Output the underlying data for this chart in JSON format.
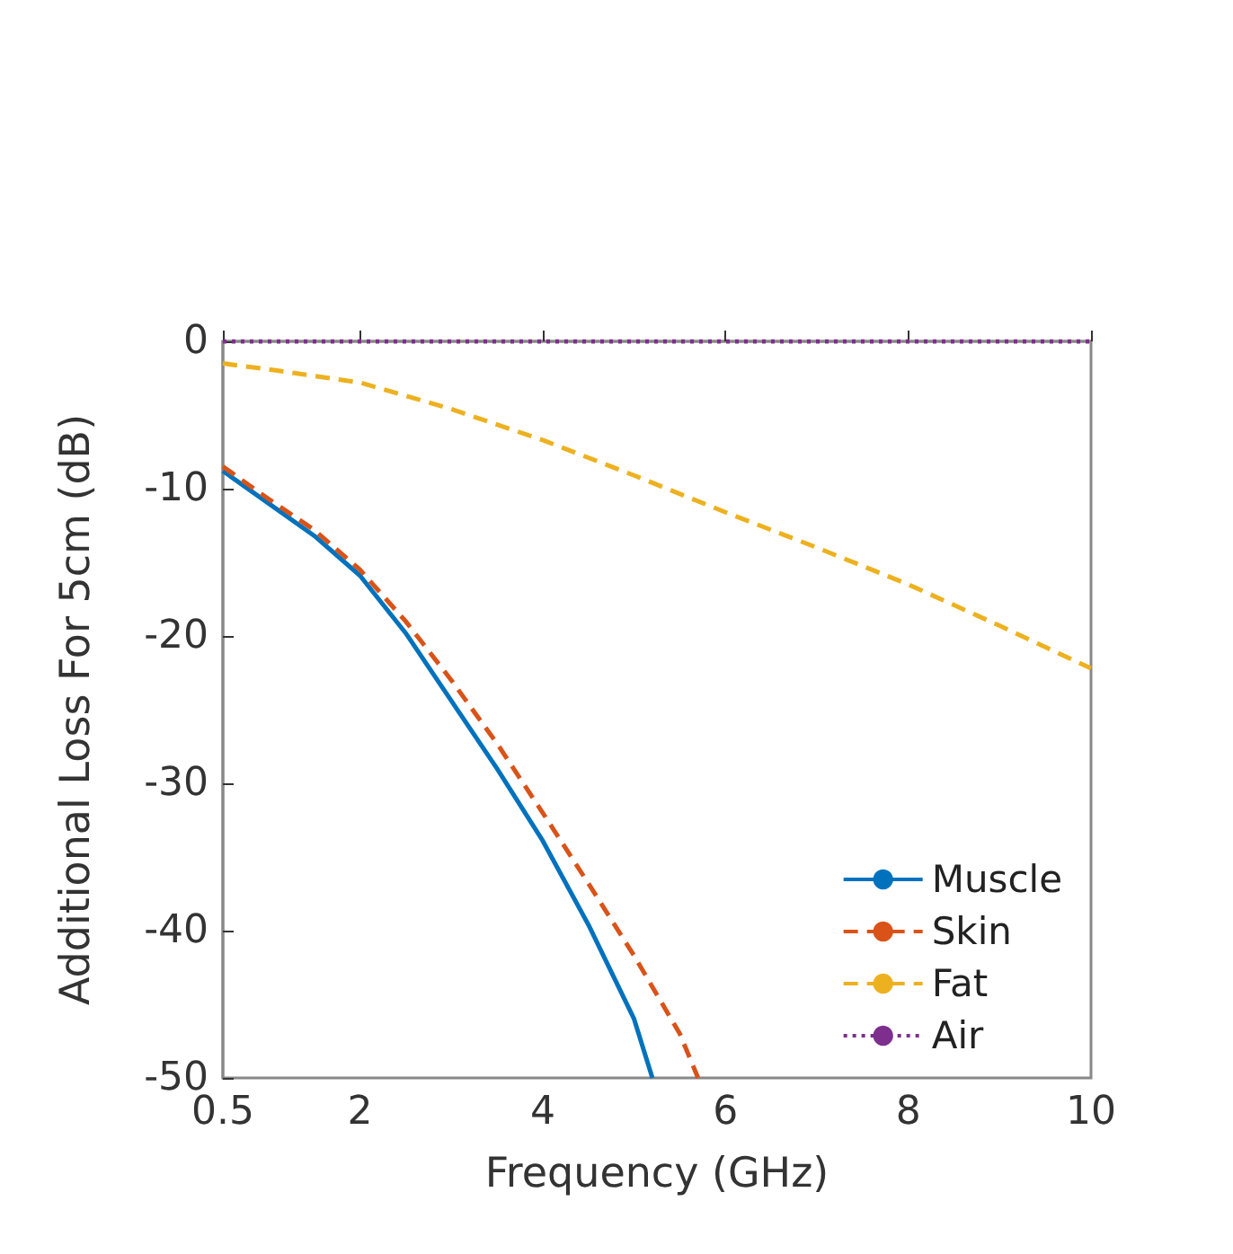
{
  "chart_data": {
    "type": "line",
    "xlabel": "Frequency (GHz)",
    "ylabel": "Additional Loss For 5cm (dB)",
    "xlim": [
      0.5,
      10
    ],
    "xticks": [
      0.5,
      2,
      4,
      6,
      8,
      10
    ],
    "ylim": [
      -50,
      0
    ],
    "yticks": [
      -50,
      -40,
      -30,
      -20,
      -10,
      0
    ],
    "grid": false,
    "legend": "bottom right",
    "marker": "none",
    "series": [
      {
        "name": "Muscle",
        "color": "#0072bd",
        "line_style": "solid",
        "x": [
          0.5,
          1,
          1.5,
          2,
          2.5,
          3,
          3.5,
          4,
          4.5,
          5,
          5.2
        ],
        "values": [
          -8.8,
          -11,
          -13.2,
          -15.9,
          -19.8,
          -24.4,
          -29,
          -33.9,
          -39.6,
          -46,
          -50
        ]
      },
      {
        "name": "Skin",
        "color": "#d95319",
        "line_style": "dashed",
        "x": [
          0.5,
          1,
          1.5,
          2,
          2.5,
          3,
          3.5,
          4,
          4.5,
          5,
          5.5,
          5.7
        ],
        "values": [
          -8.5,
          -10.7,
          -12.8,
          -15.5,
          -19,
          -23,
          -27.3,
          -32,
          -36.8,
          -41.7,
          -47,
          -50
        ]
      },
      {
        "name": "Fat",
        "color": "#edb120",
        "line_style": "dashed",
        "x": [
          0.5,
          1,
          2,
          3,
          4,
          5,
          6,
          7,
          8,
          9,
          10
        ],
        "values": [
          -1.5,
          -1.9,
          -2.8,
          -4.6,
          -6.7,
          -9.1,
          -11.6,
          -14,
          -16.5,
          -19.3,
          -22.2
        ]
      },
      {
        "name": "Air",
        "color": "#7e2f8e",
        "line_style": "dotted",
        "x": [
          0.5,
          10
        ],
        "values": [
          0,
          0
        ]
      }
    ]
  }
}
